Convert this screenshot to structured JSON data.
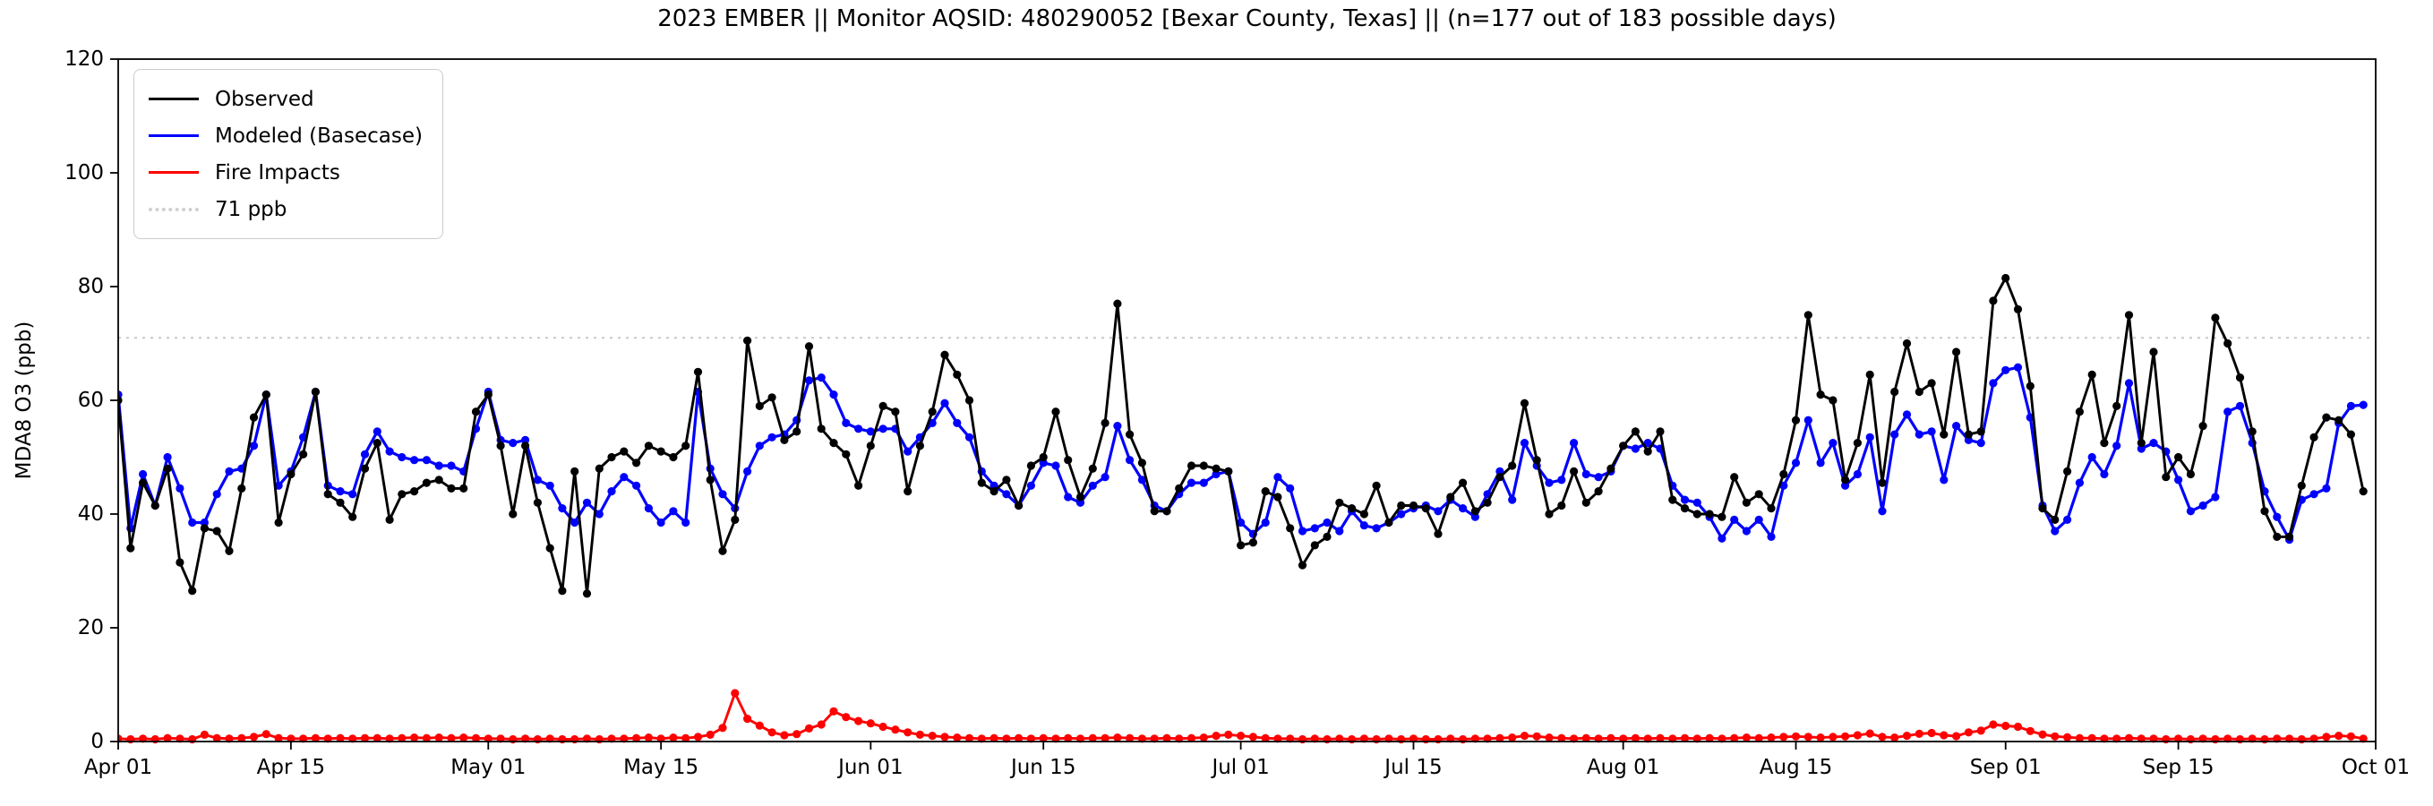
{
  "title": "2023 EMBER || Monitor AQSID: 480290052 [Bexar County, Texas] || (n=177 out of 183 possible days)",
  "axes": {
    "ylabel": "MDA8 O3 (ppb)",
    "ylim": [
      0,
      120
    ],
    "yticks": [
      0,
      20,
      40,
      60,
      80,
      100,
      120
    ],
    "xticks": [
      {
        "label": "Apr 01",
        "day": 0
      },
      {
        "label": "Apr 15",
        "day": 14
      },
      {
        "label": "May 01",
        "day": 30
      },
      {
        "label": "May 15",
        "day": 44
      },
      {
        "label": "Jun 01",
        "day": 61
      },
      {
        "label": "Jun 15",
        "day": 75
      },
      {
        "label": "Jul 01",
        "day": 91
      },
      {
        "label": "Jul 15",
        "day": 105
      },
      {
        "label": "Aug 01",
        "day": 122
      },
      {
        "label": "Aug 15",
        "day": 136
      },
      {
        "label": "Sep 01",
        "day": 153
      },
      {
        "label": "Sep 15",
        "day": 167
      },
      {
        "label": "Oct 01",
        "day": 183
      }
    ],
    "x_total_days": 183
  },
  "legend": {
    "items": [
      {
        "label": "Observed",
        "color": "#000000",
        "style": "solid"
      },
      {
        "label": "Modeled (Basecase)",
        "color": "#0000ff",
        "style": "solid"
      },
      {
        "label": "Fire Impacts",
        "color": "#ff0000",
        "style": "solid"
      },
      {
        "label": "71 ppb",
        "color": "#d0d0d0",
        "style": "dotted"
      }
    ]
  },
  "chart_data": {
    "type": "line",
    "title": "2023 EMBER || Monitor AQSID: 480290052 [Bexar County, Texas] || (n=177 out of 183 possible days)",
    "xlabel": "",
    "ylabel": "MDA8 O3 (ppb)",
    "ylim": [
      0,
      120
    ],
    "grid": false,
    "legend_position": "upper-left",
    "start_date": "2023-04-01",
    "x_unit": "days since Apr 01 (daily values, Apr 01 - Sep 30)",
    "threshold": {
      "value": 71,
      "label": "71 ppb",
      "color": "#d0d0d0",
      "linestyle": "dotted"
    },
    "series": [
      {
        "name": "Observed",
        "color": "#000000",
        "marker": "circle",
        "values": [
          60,
          34,
          45.5,
          41.5,
          48,
          31.5,
          26.5,
          37.5,
          37,
          33.5,
          44.5,
          57,
          61,
          38.5,
          47,
          50.5,
          61.5,
          43.5,
          42,
          39.5,
          48,
          52.5,
          39,
          43.5,
          44,
          45.5,
          46,
          44.5,
          44.5,
          58,
          61,
          52,
          40,
          52,
          42,
          34,
          26.5,
          47.5,
          26,
          48,
          50,
          51,
          49,
          52,
          51,
          50,
          52,
          65,
          46,
          33.5,
          39,
          70.5,
          59,
          60.5,
          53,
          54.5,
          69.5,
          55,
          52.5,
          50.5,
          45,
          52,
          59,
          58,
          44,
          52,
          58,
          68,
          64.5,
          60,
          45.5,
          44,
          46,
          41.5,
          48.5,
          50,
          58,
          49.5,
          43,
          48,
          56,
          77,
          54,
          49,
          40.5,
          40.5,
          44.5,
          48.5,
          48.5,
          48,
          47.5,
          34.5,
          35,
          44,
          43,
          37.5,
          31,
          34.5,
          36,
          42,
          41,
          40,
          45,
          38.5,
          41.5,
          41.5,
          41,
          36.5,
          43,
          45.5,
          40.5,
          42,
          46.5,
          48.5,
          59.5,
          49.5,
          40,
          41.5,
          47.5,
          42,
          44,
          48,
          52,
          54.5,
          51,
          54.5,
          42.5,
          41,
          40,
          40,
          39.5,
          46.5,
          42,
          43.5,
          41,
          47,
          56.5,
          75,
          61,
          60,
          46,
          52.5,
          64.5,
          45.5,
          61.5,
          70,
          61.5,
          63,
          54,
          68.5,
          54,
          54.5,
          77.5,
          81.5,
          76,
          62.5,
          41,
          39,
          47.5,
          58,
          64.5,
          52.5,
          59,
          75,
          52.5,
          68.5,
          46.5,
          50,
          47,
          55.5,
          74.5,
          70,
          64,
          54.5,
          40.5,
          36,
          36,
          45,
          53.5,
          57,
          56.5,
          54,
          44
        ]
      },
      {
        "name": "Modeled (Basecase)",
        "color": "#0000ff",
        "marker": "circle",
        "values": [
          61,
          37.5,
          47,
          41.5,
          50,
          44.5,
          38.5,
          38.5,
          43.5,
          47.5,
          48,
          52,
          61,
          45,
          47.5,
          53.5,
          61.5,
          45,
          44,
          43.5,
          50.5,
          54.5,
          51,
          50,
          49.5,
          49.5,
          48.5,
          48.5,
          47.5,
          55,
          61.5,
          53,
          52.5,
          53,
          46,
          45,
          41,
          38.5,
          42,
          40,
          44,
          46.5,
          45,
          41,
          38.5,
          40.5,
          38.5,
          61.5,
          48,
          43.5,
          41,
          47.5,
          52,
          53.5,
          54,
          56.5,
          63.5,
          64,
          61,
          56,
          55,
          54.5,
          55,
          55,
          51,
          53.5,
          56,
          59.5,
          56,
          53.5,
          47.5,
          45,
          43.5,
          41.5,
          45,
          49,
          48.5,
          43,
          42,
          45,
          46.5,
          55.5,
          49.5,
          46,
          41.5,
          40.5,
          43.5,
          45.5,
          45.5,
          47,
          47.5,
          38.5,
          36.5,
          38.5,
          46.5,
          44.5,
          37,
          37.5,
          38.5,
          37,
          40.5,
          38,
          37.5,
          38.5,
          40,
          41,
          41.5,
          40.5,
          42.5,
          41,
          39.5,
          43.5,
          47.5,
          42.5,
          52.5,
          48.5,
          45.5,
          46,
          52.5,
          47,
          46.5,
          47.5,
          52,
          51.5,
          52.5,
          51.5,
          45,
          42.5,
          42,
          39.5,
          35.7,
          39,
          37,
          39,
          36,
          45,
          49,
          56.5,
          49,
          52.5,
          45,
          47,
          53.5,
          40.5,
          54,
          57.5,
          54,
          54.5,
          46,
          55.5,
          53,
          52.5,
          63,
          65.3,
          65.8,
          57,
          41.5,
          37,
          39,
          45.5,
          50,
          47,
          52,
          63,
          51.5,
          52.5,
          51,
          46,
          40.5,
          41.5,
          43,
          58,
          59,
          52.5,
          44,
          39.5,
          35.5,
          42.5,
          43.5,
          44.5,
          56,
          59,
          59.2
        ]
      },
      {
        "name": "Fire Impacts",
        "color": "#ff0000",
        "marker": "circle",
        "values": [
          0.5,
          0.4,
          0.5,
          0.4,
          0.6,
          0.5,
          0.4,
          1.2,
          0.6,
          0.5,
          0.6,
          0.8,
          1.3,
          0.6,
          0.5,
          0.5,
          0.6,
          0.5,
          0.6,
          0.5,
          0.6,
          0.6,
          0.5,
          0.6,
          0.7,
          0.6,
          0.7,
          0.6,
          0.7,
          0.6,
          0.5,
          0.5,
          0.4,
          0.5,
          0.4,
          0.5,
          0.4,
          0.4,
          0.5,
          0.4,
          0.5,
          0.5,
          0.6,
          0.7,
          0.5,
          0.7,
          0.6,
          0.8,
          1.2,
          2.4,
          8.5,
          4.0,
          2.8,
          1.6,
          1.1,
          1.3,
          2.3,
          3.0,
          5.3,
          4.3,
          3.6,
          3.2,
          2.6,
          2.1,
          1.6,
          1.2,
          1.0,
          0.8,
          0.7,
          0.6,
          0.5,
          0.6,
          0.5,
          0.6,
          0.5,
          0.6,
          0.5,
          0.6,
          0.5,
          0.6,
          0.6,
          0.7,
          0.6,
          0.5,
          0.5,
          0.6,
          0.5,
          0.6,
          0.7,
          1.0,
          1.2,
          1.0,
          0.8,
          0.6,
          0.5,
          0.5,
          0.4,
          0.5,
          0.4,
          0.5,
          0.4,
          0.5,
          0.4,
          0.5,
          0.4,
          0.5,
          0.4,
          0.4,
          0.5,
          0.4,
          0.5,
          0.5,
          0.6,
          0.7,
          1.0,
          0.9,
          0.7,
          0.6,
          0.5,
          0.6,
          0.5,
          0.6,
          0.5,
          0.6,
          0.5,
          0.6,
          0.5,
          0.6,
          0.5,
          0.6,
          0.5,
          0.6,
          0.7,
          0.6,
          0.7,
          0.8,
          0.9,
          0.8,
          0.7,
          0.8,
          0.9,
          1.1,
          1.4,
          0.8,
          0.7,
          1.0,
          1.35,
          1.5,
          1.1,
          0.95,
          1.6,
          1.9,
          3.0,
          2.75,
          2.6,
          1.85,
          1.25,
          0.9,
          0.75,
          0.6,
          0.6,
          0.5,
          0.5,
          0.6,
          0.5,
          0.5,
          0.4,
          0.5,
          0.4,
          0.5,
          0.4,
          0.5,
          0.4,
          0.5,
          0.4,
          0.5,
          0.5,
          0.4,
          0.5,
          0.8,
          1.0,
          0.9,
          0.5
        ]
      }
    ]
  }
}
